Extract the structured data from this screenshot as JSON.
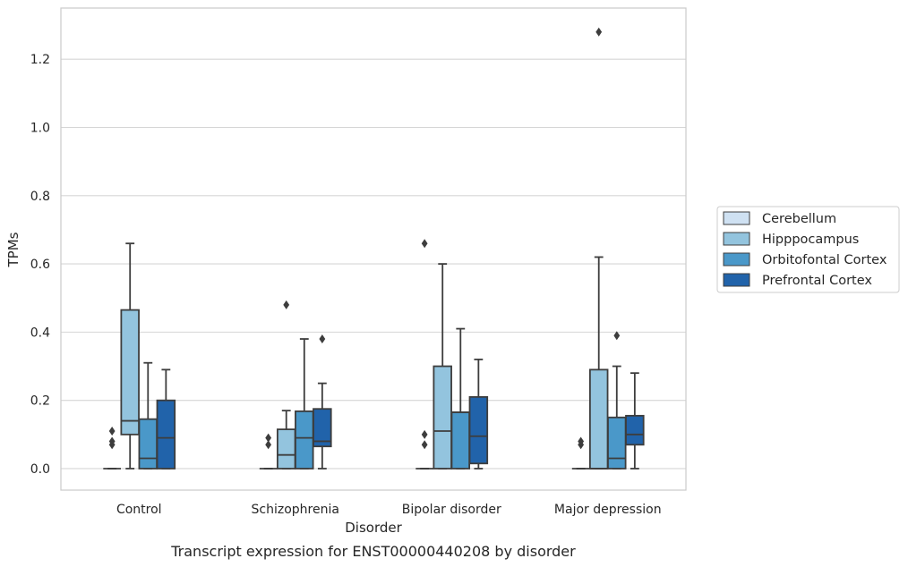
{
  "chart_data": {
    "type": "box",
    "title": "",
    "caption": "Transcript expression for ENST00000440208 by disorder",
    "xlabel": "Disorder",
    "ylabel": "TPMs",
    "ylim": [
      -0.063,
      1.35
    ],
    "y_ticks": [
      0.0,
      0.2,
      0.4,
      0.6,
      0.8,
      1.0,
      1.2
    ],
    "y_tick_labels": [
      "0.0",
      "0.2",
      "0.4",
      "0.6",
      "0.8",
      "1.0",
      "1.2"
    ],
    "grid": "horizontal",
    "legend_placement": "right",
    "categories": [
      "Control",
      "Schizophrenia",
      "Bipolar disorder",
      "Major depression"
    ],
    "series": [
      {
        "name": "Cerebellum",
        "color": "#cfe1f2",
        "boxes": [
          {
            "q1": 0,
            "median": 0,
            "q3": 0,
            "whisker_low": 0,
            "whisker_high": 0,
            "outliers": [
              0.07,
              0.08,
              0.11
            ]
          },
          {
            "q1": 0,
            "median": 0,
            "q3": 0,
            "whisker_low": 0,
            "whisker_high": 0,
            "outliers": [
              0.07,
              0.09
            ]
          },
          {
            "q1": 0,
            "median": 0,
            "q3": 0,
            "whisker_low": 0,
            "whisker_high": 0,
            "outliers": [
              0.07,
              0.1,
              0.66
            ]
          },
          {
            "q1": 0,
            "median": 0,
            "q3": 0,
            "whisker_low": 0,
            "whisker_high": 0,
            "outliers": [
              0.07,
              0.08
            ]
          }
        ]
      },
      {
        "name": "Hipppocampus",
        "color": "#93c4de",
        "boxes": [
          {
            "q1": 0.1,
            "median": 0.14,
            "q3": 0.465,
            "whisker_low": 0,
            "whisker_high": 0.66,
            "outliers": []
          },
          {
            "q1": 0,
            "median": 0.04,
            "q3": 0.115,
            "whisker_low": 0,
            "whisker_high": 0.17,
            "outliers": [
              0.48
            ]
          },
          {
            "q1": 0,
            "median": 0.11,
            "q3": 0.3,
            "whisker_low": 0,
            "whisker_high": 0.6,
            "outliers": []
          },
          {
            "q1": 0,
            "median": 0,
            "q3": 0.29,
            "whisker_low": 0,
            "whisker_high": 0.62,
            "outliers": [
              1.28
            ]
          }
        ]
      },
      {
        "name": "Orbitofontal Cortex",
        "color": "#4a98c9",
        "boxes": [
          {
            "q1": 0,
            "median": 0.03,
            "q3": 0.145,
            "whisker_low": 0,
            "whisker_high": 0.31,
            "outliers": []
          },
          {
            "q1": 0,
            "median": 0.09,
            "q3": 0.168,
            "whisker_low": 0,
            "whisker_high": 0.38,
            "outliers": []
          },
          {
            "q1": 0,
            "median": 0.165,
            "q3": 0.165,
            "whisker_low": 0,
            "whisker_high": 0.41,
            "outliers": []
          },
          {
            "q1": 0,
            "median": 0.03,
            "q3": 0.15,
            "whisker_low": 0,
            "whisker_high": 0.3,
            "outliers": [
              0.39
            ]
          }
        ]
      },
      {
        "name": "Prefrontal Cortex",
        "color": "#2163aa",
        "boxes": [
          {
            "q1": 0,
            "median": 0.09,
            "q3": 0.2,
            "whisker_low": 0,
            "whisker_high": 0.29,
            "outliers": []
          },
          {
            "q1": 0.065,
            "median": 0.08,
            "q3": 0.175,
            "whisker_low": 0,
            "whisker_high": 0.25,
            "outliers": [
              0.38
            ]
          },
          {
            "q1": 0.015,
            "median": 0.095,
            "q3": 0.21,
            "whisker_low": 0,
            "whisker_high": 0.32,
            "outliers": []
          },
          {
            "q1": 0.07,
            "median": 0.1,
            "q3": 0.155,
            "whisker_low": 0,
            "whisker_high": 0.28,
            "outliers": []
          }
        ]
      }
    ]
  }
}
